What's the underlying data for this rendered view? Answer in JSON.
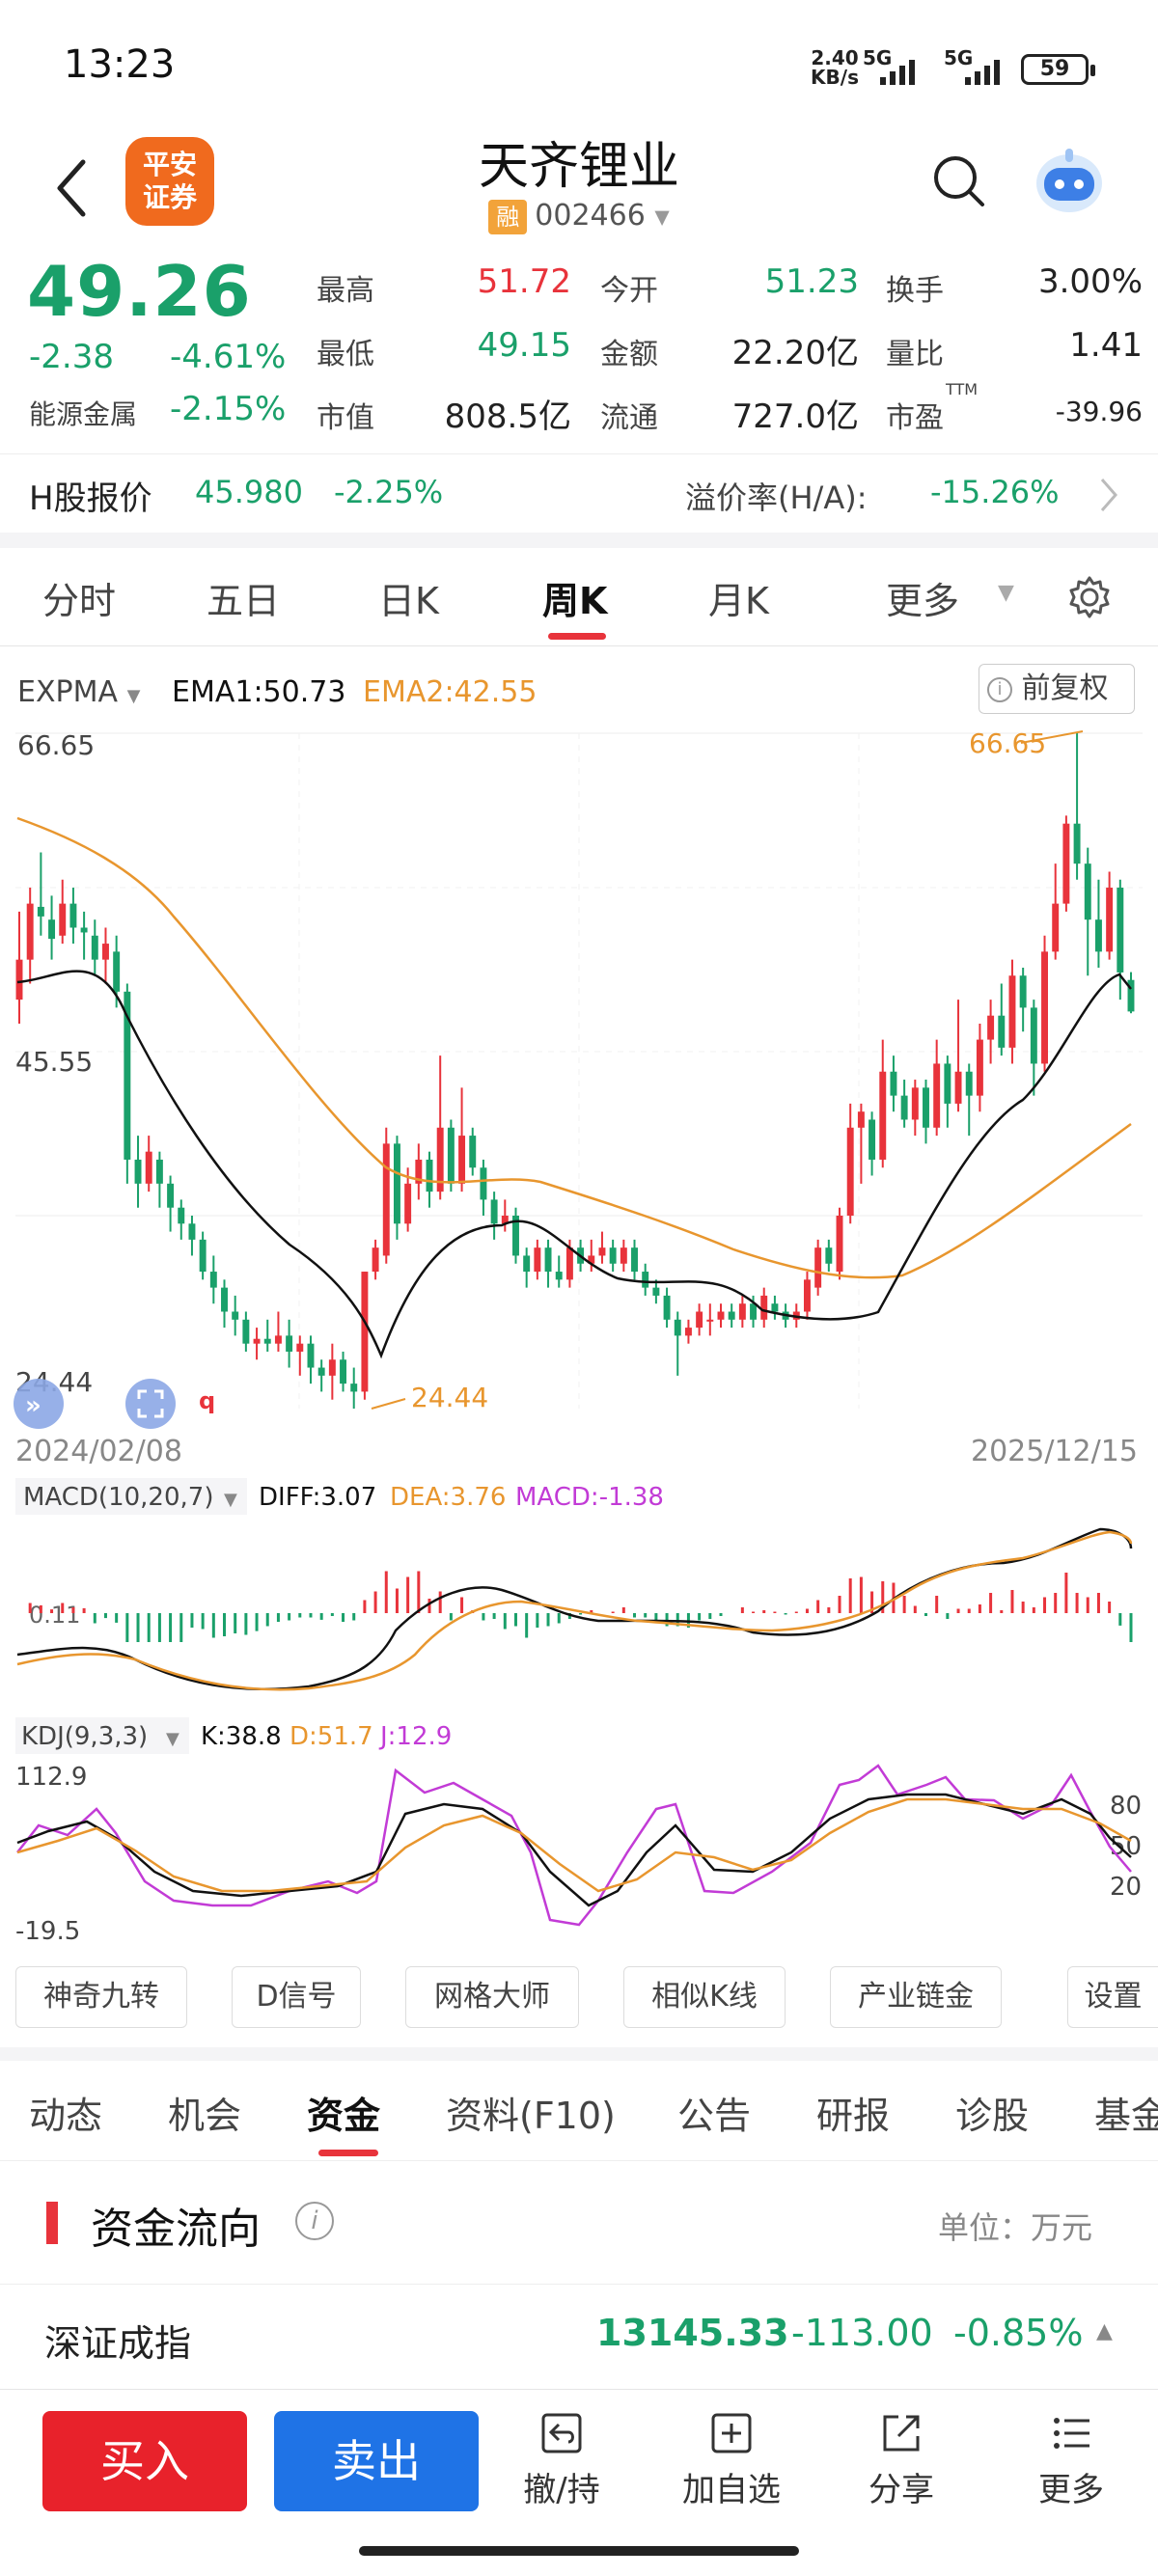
{
  "status_bar": {
    "time": "13:23",
    "net_speed_value": "2.40",
    "net_speed_unit": "KB/s",
    "signal1": "5G",
    "signal2": "5G",
    "battery": "59"
  },
  "header": {
    "broker_logo_line1": "平安",
    "broker_logo_line2": "证券",
    "stock_name": "天齐锂业",
    "margin_badge": "融",
    "stock_code": "002466"
  },
  "quote": {
    "price": "49.26",
    "change": "-2.38",
    "change_pct": "-4.61%",
    "sector_name": "能源金属",
    "sector_pct": "-2.15%",
    "high_label": "最高",
    "high": "51.72",
    "low_label": "最低",
    "low": "49.15",
    "mktcap_label": "市值",
    "mktcap": "808.5亿",
    "open_label": "今开",
    "open": "51.23",
    "amount_label": "金额",
    "amount": "22.20亿",
    "float_label": "流通",
    "float": "727.0亿",
    "turnover_label": "换手",
    "turnover": "3.00%",
    "volratio_label": "量比",
    "volratio": "1.41",
    "pe_label": "市盈",
    "pe_sup": "TTM",
    "pe": "-39.96"
  },
  "hshare": {
    "label": "H股报价",
    "price": "45.980",
    "pct": "-2.25%",
    "premium_label": "溢价率(H/A):",
    "premium": "-15.26%"
  },
  "period_tabs": [
    "分时",
    "五日",
    "日K",
    "周K",
    "月K",
    "更多"
  ],
  "active_period": "周K",
  "main_indicator": {
    "name": "EXPMA",
    "ema1": "EMA1:50.73",
    "ema2": "EMA2:42.55",
    "adjust": "前复权",
    "max_label": "66.65",
    "mid_label": "45.55",
    "min_label": "24.44",
    "max_marker": "66.65",
    "min_marker": "24.44",
    "start_date": "2024/02/08",
    "end_date": "2025/12/15"
  },
  "macd": {
    "name": "MACD(10,20,7)",
    "diff": "DIFF:3.07",
    "dea": "DEA:3.76",
    "macd": "MACD:-1.38",
    "axis_label": "0.11"
  },
  "kdj": {
    "name": "KDJ(9,3,3)",
    "k": "K:38.8",
    "d": "D:51.7",
    "j": "J:12.9",
    "max": "112.9",
    "min": "-19.5",
    "level80": "80",
    "level50": "50",
    "level20": "20"
  },
  "tools": [
    "神奇九转",
    "D信号",
    "网格大师",
    "相似K线",
    "产业链金",
    "设置"
  ],
  "info_tabs": [
    "动态",
    "机会",
    "资金",
    "资料(F10)",
    "公告",
    "研报",
    "诊股",
    "基金"
  ],
  "active_info_tab": "资金",
  "fund_flow": {
    "title": "资金流向",
    "unit": "单位：万元"
  },
  "index_row": {
    "name": "深证成指",
    "value": "13145.33",
    "change": "-113.00",
    "pct": "-0.85%"
  },
  "bottom_bar": {
    "buy": "买入",
    "sell": "卖出",
    "cancel": "撤/持",
    "watch": "加自选",
    "share": "分享",
    "more": "更多"
  },
  "colors": {
    "up": "#e8333b",
    "down": "#1aa06a",
    "ema2": "#e8962e",
    "macd": "#c23bd6",
    "accent": "#e8333b"
  },
  "chart_data": {
    "type": "candlestick",
    "period": "weekly",
    "y_range": [
      24.44,
      66.65
    ],
    "candles": [
      [
        50.0,
        52.5,
        55.5,
        48.5
      ],
      [
        52.5,
        56.0,
        57.0,
        51.0
      ],
      [
        55.8,
        55.2,
        59.2,
        54.0
      ],
      [
        55.0,
        53.8,
        56.5,
        52.5
      ],
      [
        54.0,
        56.0,
        57.5,
        53.5
      ],
      [
        56.0,
        54.5,
        57.0,
        53.5
      ],
      [
        54.5,
        54.2,
        55.5,
        52.5
      ],
      [
        54.0,
        52.5,
        55.0,
        51.5
      ],
      [
        52.5,
        53.5,
        54.5,
        51.0
      ],
      [
        53.0,
        50.5,
        54.0,
        49.5
      ],
      [
        50.5,
        40.0,
        51.0,
        38.5
      ],
      [
        40.0,
        38.5,
        41.5,
        37.0
      ],
      [
        38.5,
        40.5,
        41.5,
        38.0
      ],
      [
        40.0,
        38.5,
        40.5,
        37.0
      ],
      [
        38.5,
        37.0,
        39.0,
        35.5
      ],
      [
        37.0,
        36.0,
        37.5,
        35.0
      ],
      [
        36.0,
        35.0,
        36.5,
        34.0
      ],
      [
        35.0,
        33.0,
        35.5,
        32.5
      ],
      [
        33.0,
        32.0,
        34.0,
        31.0
      ],
      [
        32.0,
        30.5,
        32.5,
        29.5
      ],
      [
        30.5,
        30.0,
        31.5,
        29.0
      ],
      [
        30.0,
        28.5,
        30.5,
        28.0
      ],
      [
        28.5,
        28.8,
        29.5,
        27.5
      ],
      [
        28.8,
        28.5,
        30.0,
        28.0
      ],
      [
        28.5,
        29.0,
        30.5,
        28.0
      ],
      [
        29.0,
        28.0,
        30.0,
        27.0
      ],
      [
        28.0,
        28.5,
        29.0,
        26.5
      ],
      [
        28.5,
        27.0,
        29.0,
        26.0
      ],
      [
        27.0,
        26.5,
        27.5,
        25.5
      ],
      [
        26.5,
        27.5,
        28.5,
        25.0
      ],
      [
        27.5,
        26.0,
        28.0,
        25.5
      ],
      [
        26.0,
        25.5,
        27.0,
        24.44
      ],
      [
        25.5,
        33.0,
        33.0,
        25.0
      ],
      [
        33.0,
        34.5,
        35.0,
        32.5
      ],
      [
        34.0,
        41.0,
        42.0,
        33.5
      ],
      [
        41.0,
        36.0,
        41.5,
        35.0
      ],
      [
        36.0,
        38.5,
        39.5,
        35.5
      ],
      [
        38.5,
        40.0,
        41.0,
        37.5
      ],
      [
        40.0,
        38.0,
        40.5,
        37.0
      ],
      [
        38.0,
        42.0,
        46.5,
        37.5
      ],
      [
        42.0,
        38.5,
        42.5,
        38.0
      ],
      [
        38.5,
        41.5,
        44.5,
        38.0
      ],
      [
        41.5,
        39.5,
        42.0,
        39.0
      ],
      [
        39.5,
        37.5,
        40.0,
        36.5
      ],
      [
        37.5,
        36.0,
        38.0,
        35.0
      ],
      [
        36.0,
        36.5,
        37.5,
        35.5
      ],
      [
        36.5,
        34.0,
        37.0,
        33.5
      ],
      [
        34.0,
        33.0,
        34.5,
        32.0
      ],
      [
        33.0,
        34.5,
        35.0,
        32.5
      ],
      [
        34.5,
        33.0,
        35.0,
        32.0
      ],
      [
        33.0,
        32.5,
        34.0,
        32.0
      ],
      [
        32.5,
        34.5,
        35.0,
        32.0
      ],
      [
        34.5,
        33.5,
        35.0,
        33.0
      ],
      [
        33.5,
        34.0,
        35.0,
        33.0
      ],
      [
        34.0,
        34.5,
        35.5,
        33.5
      ],
      [
        34.5,
        33.5,
        35.0,
        33.0
      ],
      [
        33.5,
        34.5,
        35.0,
        33.0
      ],
      [
        34.5,
        33.0,
        35.0,
        32.5
      ],
      [
        33.0,
        32.0,
        33.5,
        31.5
      ],
      [
        32.0,
        31.5,
        32.5,
        31.0
      ],
      [
        31.5,
        30.0,
        32.0,
        29.5
      ],
      [
        30.0,
        29.0,
        30.5,
        26.5
      ],
      [
        29.0,
        29.5,
        30.0,
        28.5
      ],
      [
        29.5,
        30.5,
        31.0,
        29.0
      ],
      [
        30.0,
        30.0,
        31.0,
        29.0
      ],
      [
        30.0,
        30.5,
        31.0,
        29.5
      ],
      [
        30.5,
        30.0,
        31.0,
        29.5
      ],
      [
        30.0,
        31.0,
        31.5,
        29.5
      ],
      [
        31.0,
        30.0,
        31.5,
        29.5
      ],
      [
        30.0,
        31.5,
        32.0,
        29.5
      ],
      [
        31.0,
        30.5,
        31.5,
        30.0
      ],
      [
        30.5,
        30.0,
        31.0,
        29.5
      ],
      [
        30.0,
        30.5,
        31.0,
        29.5
      ],
      [
        30.5,
        32.5,
        33.0,
        30.0
      ],
      [
        32.0,
        34.5,
        35.0,
        31.5
      ],
      [
        34.5,
        33.5,
        35.0,
        33.0
      ],
      [
        33.0,
        36.5,
        37.0,
        32.5
      ],
      [
        36.5,
        42.0,
        43.5,
        36.0
      ],
      [
        42.0,
        43.0,
        43.5,
        38.5
      ],
      [
        42.5,
        40.0,
        43.0,
        39.0
      ],
      [
        40.0,
        45.5,
        47.5,
        39.5
      ],
      [
        45.5,
        44.0,
        46.5,
        43.0
      ],
      [
        44.0,
        42.5,
        45.0,
        42.0
      ],
      [
        42.5,
        44.5,
        45.0,
        41.5
      ],
      [
        44.5,
        42.0,
        45.0,
        41.0
      ],
      [
        42.0,
        46.0,
        47.5,
        41.5
      ],
      [
        46.0,
        43.5,
        46.5,
        42.0
      ],
      [
        43.5,
        45.5,
        50.0,
        43.0
      ],
      [
        45.5,
        44.0,
        46.0,
        41.5
      ],
      [
        44.0,
        47.5,
        48.5,
        43.0
      ],
      [
        47.5,
        49.0,
        50.0,
        46.0
      ],
      [
        49.0,
        47.0,
        51.0,
        46.5
      ],
      [
        47.0,
        51.5,
        52.5,
        46.0
      ],
      [
        51.5,
        49.5,
        52.0,
        48.0
      ],
      [
        49.5,
        46.0,
        50.0,
        44.0
      ],
      [
        46.0,
        53.0,
        54.0,
        45.5
      ],
      [
        53.0,
        56.0,
        58.5,
        52.5
      ],
      [
        56.0,
        61.0,
        61.5,
        55.5
      ],
      [
        61.0,
        58.5,
        66.65,
        57.5
      ],
      [
        58.5,
        55.0,
        59.5,
        51.5
      ],
      [
        55.0,
        53.0,
        57.5,
        52.0
      ],
      [
        53.0,
        57.0,
        58.0,
        52.5
      ],
      [
        57.0,
        51.7,
        57.5,
        50.0
      ],
      [
        51.23,
        49.26,
        51.72,
        49.15
      ]
    ],
    "ema1_last": 50.73,
    "ema2_last": 42.55
  }
}
